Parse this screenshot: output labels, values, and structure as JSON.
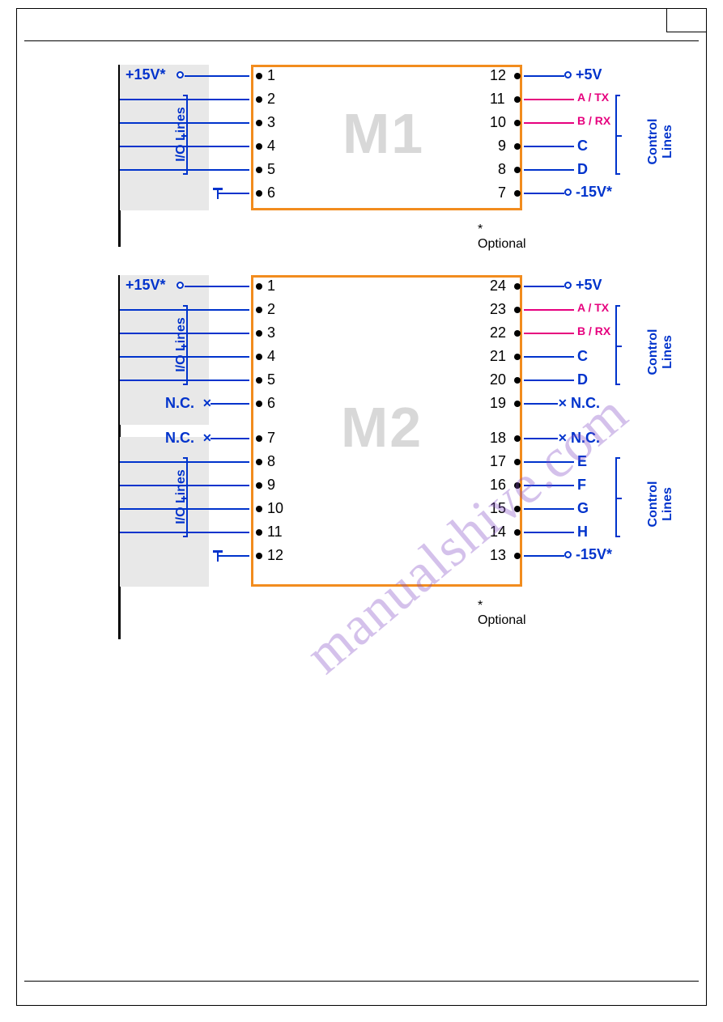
{
  "colors": {
    "chip_border": "#f28c1e",
    "chip_label": "#d8d8d8",
    "wire_blue": "#0033cc",
    "wire_magenta": "#e6007e",
    "text_blue": "#0033cc",
    "text_magenta": "#e6007e",
    "gray_box": "#e8e8e8",
    "black": "#000000",
    "watermark": "rgba(131,76,199,0.35)"
  },
  "optional_note": "* Optional",
  "io_lines_label": "I/O Lines",
  "control_lines_label": "Control\nLines",
  "watermark_text": "manualshive.com",
  "m1": {
    "name": "M1",
    "left": [
      {
        "pin": "1",
        "label": "+15V*",
        "type": "power",
        "terminal": "open",
        "bracket": false
      },
      {
        "pin": "2",
        "label": "",
        "type": "io",
        "bracket": true
      },
      {
        "pin": "3",
        "label": "",
        "type": "io",
        "bracket": true
      },
      {
        "pin": "4",
        "label": "",
        "type": "io",
        "bracket": true
      },
      {
        "pin": "5",
        "label": "",
        "type": "io",
        "bracket": true
      },
      {
        "pin": "6",
        "label": "",
        "type": "gnd",
        "bracket": false
      }
    ],
    "right": [
      {
        "pin": "12",
        "label": "+5V",
        "type": "power",
        "terminal": "open",
        "color": "blue"
      },
      {
        "pin": "11",
        "label": "A / TX",
        "type": "ctrl",
        "color": "magenta"
      },
      {
        "pin": "10",
        "label": "B / RX",
        "type": "ctrl",
        "color": "magenta"
      },
      {
        "pin": "9",
        "label": "C",
        "type": "ctrl",
        "color": "blue"
      },
      {
        "pin": "8",
        "label": "D",
        "type": "ctrl",
        "color": "blue"
      },
      {
        "pin": "7",
        "label": "-15V*",
        "type": "power",
        "terminal": "open",
        "color": "blue"
      }
    ]
  },
  "m2": {
    "name": "M2",
    "left": [
      {
        "pin": "1",
        "label": "+15V*",
        "type": "power",
        "terminal": "open"
      },
      {
        "pin": "2",
        "label": "",
        "type": "io"
      },
      {
        "pin": "3",
        "label": "",
        "type": "io"
      },
      {
        "pin": "4",
        "label": "",
        "type": "io"
      },
      {
        "pin": "5",
        "label": "",
        "type": "io"
      },
      {
        "pin": "6",
        "label": "N.C.",
        "type": "nc"
      },
      {
        "pin": "7",
        "label": "N.C.",
        "type": "nc"
      },
      {
        "pin": "8",
        "label": "",
        "type": "io"
      },
      {
        "pin": "9",
        "label": "",
        "type": "io"
      },
      {
        "pin": "10",
        "label": "",
        "type": "io"
      },
      {
        "pin": "11",
        "label": "",
        "type": "io"
      },
      {
        "pin": "12",
        "label": "",
        "type": "gnd"
      }
    ],
    "right": [
      {
        "pin": "24",
        "label": "+5V",
        "type": "power",
        "terminal": "open",
        "color": "blue"
      },
      {
        "pin": "23",
        "label": "A / TX",
        "type": "ctrl",
        "color": "magenta"
      },
      {
        "pin": "22",
        "label": "B / RX",
        "type": "ctrl",
        "color": "magenta"
      },
      {
        "pin": "21",
        "label": "C",
        "type": "ctrl",
        "color": "blue"
      },
      {
        "pin": "20",
        "label": "D",
        "type": "ctrl",
        "color": "blue"
      },
      {
        "pin": "19",
        "label": "N.C.",
        "type": "nc",
        "color": "blue"
      },
      {
        "pin": "18",
        "label": "N.C.",
        "type": "nc",
        "color": "blue"
      },
      {
        "pin": "17",
        "label": "E",
        "type": "ctrl",
        "color": "blue"
      },
      {
        "pin": "16",
        "label": "F",
        "type": "ctrl",
        "color": "blue"
      },
      {
        "pin": "15",
        "label": "G",
        "type": "ctrl",
        "color": "blue"
      },
      {
        "pin": "14",
        "label": "H",
        "type": "ctrl",
        "color": "blue"
      },
      {
        "pin": "13",
        "label": "-15V*",
        "type": "power",
        "terminal": "open",
        "color": "blue"
      }
    ]
  }
}
